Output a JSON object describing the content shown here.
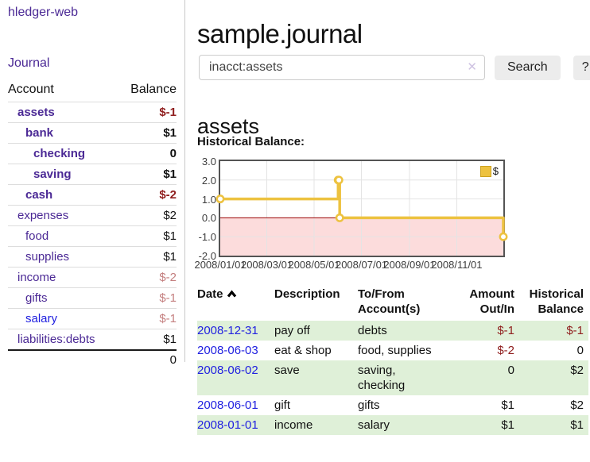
{
  "app": {
    "brand": "hledger-web",
    "nav_journal": "Journal"
  },
  "sidebar": {
    "header": {
      "account": "Account",
      "balance": "Balance"
    },
    "items": [
      {
        "label": "assets",
        "depth": 1,
        "strong": true,
        "link_tone": "purple",
        "value": "$-1",
        "value_tone": "neg-strong"
      },
      {
        "label": "bank",
        "depth": 2,
        "strong": true,
        "link_tone": "purple",
        "value": "$1",
        "value_tone": "plain"
      },
      {
        "label": "checking",
        "depth": 3,
        "strong": true,
        "link_tone": "purple",
        "value": "0",
        "value_tone": "plain"
      },
      {
        "label": "saving",
        "depth": 3,
        "strong": true,
        "link_tone": "purple",
        "value": "$1",
        "value_tone": "plain"
      },
      {
        "label": "cash",
        "depth": 2,
        "strong": true,
        "link_tone": "purple",
        "value": "$-2",
        "value_tone": "neg-strong"
      },
      {
        "label": "expenses",
        "depth": 1,
        "strong": false,
        "link_tone": "purple",
        "value": "$2",
        "value_tone": "plain"
      },
      {
        "label": "food",
        "depth": 2,
        "strong": false,
        "link_tone": "purple",
        "value": "$1",
        "value_tone": "plain"
      },
      {
        "label": "supplies",
        "depth": 2,
        "strong": false,
        "link_tone": "purple",
        "value": "$1",
        "value_tone": "plain"
      },
      {
        "label": "income",
        "depth": 1,
        "strong": false,
        "link_tone": "purple",
        "value": "$-2",
        "value_tone": "neg-soft"
      },
      {
        "label": "gifts",
        "depth": 2,
        "strong": false,
        "link_tone": "purple",
        "value": "$-1",
        "value_tone": "neg-soft"
      },
      {
        "label": "salary",
        "depth": 2,
        "strong": false,
        "link_tone": "blue",
        "value": "$-1",
        "value_tone": "neg-soft"
      },
      {
        "label": "liabilities:debts",
        "depth": 1,
        "strong": false,
        "link_tone": "purple",
        "value": "$1",
        "value_tone": "plain"
      }
    ],
    "total": "0"
  },
  "header": {
    "title": "sample.journal"
  },
  "search": {
    "value": "inacct:assets",
    "clear_icon": "✕",
    "button": "Search",
    "help": "?"
  },
  "account_page": {
    "title": "assets",
    "chart_label": "Historical Balance:"
  },
  "chart_data": {
    "type": "line",
    "title": "Historical Balance",
    "step": true,
    "series": [
      {
        "name": "$",
        "color": "#edc240",
        "points": [
          [
            "2008-01-01",
            1
          ],
          [
            "2008-06-01",
            2
          ],
          [
            "2008-06-02",
            2
          ],
          [
            "2008-06-03",
            0
          ],
          [
            "2008-12-31",
            -1
          ]
        ]
      }
    ],
    "xlim": [
      "2008-01-01",
      "2008-12-31"
    ],
    "ylim": [
      -2,
      3
    ],
    "y_ticks": [
      {
        "v": 3,
        "label": "3.0"
      },
      {
        "v": 2,
        "label": "2.0"
      },
      {
        "v": 1,
        "label": "1.0"
      },
      {
        "v": 0,
        "label": "0.0"
      },
      {
        "v": -1,
        "label": "-1.0"
      },
      {
        "v": -2,
        "label": "-2.0"
      }
    ],
    "x_ticks": [
      {
        "v": "2008-01-01",
        "label": "2008/01/01"
      },
      {
        "v": "2008-03-01",
        "label": "2008/03/01"
      },
      {
        "v": "2008-05-01",
        "label": "2008/05/01"
      },
      {
        "v": "2008-07-01",
        "label": "2008/07/01"
      },
      {
        "v": "2008-09-01",
        "label": "2008/09/01"
      },
      {
        "v": "2008-11-01",
        "label": "2008/11/01"
      }
    ],
    "legend": {
      "label": "$",
      "position": "top-right"
    },
    "grid": true,
    "negative_region_color": "#fcdcdc",
    "zero_line_color": "#990000",
    "border_color": "#545454",
    "gridline_color": "#e4e4e4"
  },
  "register": {
    "columns": {
      "date": "Date",
      "description": "Description",
      "accounts": "To/From Account(s)",
      "amount": "Amount Out/In",
      "balance": "Historical Balance"
    },
    "sort": "ascending",
    "rows": [
      {
        "date": "2008-12-31",
        "description": "pay off",
        "accounts": "debts",
        "amount": "$-1",
        "amount_tone": "neg-strong",
        "balance": "$-1",
        "balance_tone": "neg-strong"
      },
      {
        "date": "2008-06-03",
        "description": "eat & shop",
        "accounts": "food, supplies",
        "amount": "$-2",
        "amount_tone": "neg-strong",
        "balance": "0",
        "balance_tone": "plain"
      },
      {
        "date": "2008-06-02",
        "description": "save",
        "accounts": "saving, checking",
        "amount": "0",
        "amount_tone": "plain",
        "balance": "$2",
        "balance_tone": "plain"
      },
      {
        "date": "2008-06-01",
        "description": "gift",
        "accounts": "gifts",
        "amount": "$1",
        "amount_tone": "plain",
        "balance": "$2",
        "balance_tone": "plain"
      },
      {
        "date": "2008-01-01",
        "description": "income",
        "accounts": "salary",
        "amount": "$1",
        "amount_tone": "plain",
        "balance": "$1",
        "balance_tone": "plain"
      }
    ]
  }
}
